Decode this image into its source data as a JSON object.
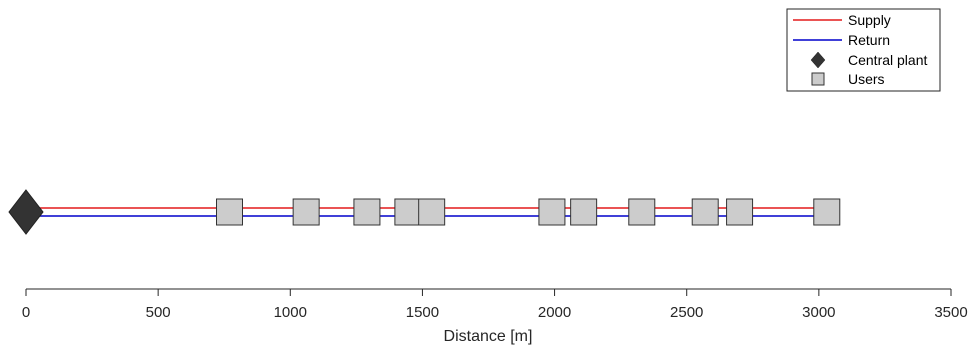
{
  "chart_data": {
    "type": "scatter",
    "title": "",
    "xlabel": "Distance [m]",
    "ylabel": "",
    "xlim": [
      0,
      3500
    ],
    "xticks": [
      0,
      500,
      1000,
      1500,
      2000,
      2500,
      3000,
      3500
    ],
    "xtick_labels": [
      "0",
      "500",
      "1000",
      "1500",
      "2000",
      "2500",
      "3000",
      "3500"
    ],
    "grid": false,
    "legend_position": "top-right",
    "series": [
      {
        "name": "Supply",
        "kind": "line",
        "color": "#e31a1c",
        "x": [
          0,
          3050
        ]
      },
      {
        "name": "Return",
        "kind": "line",
        "color": "#0000cc",
        "x": [
          0,
          3050
        ]
      },
      {
        "name": "Central plant",
        "kind": "marker",
        "marker": "diamond",
        "color": "#333333",
        "x": [
          0
        ]
      },
      {
        "name": "Users",
        "kind": "marker",
        "marker": "square",
        "color": "#cccccc",
        "x": [
          770,
          1060,
          1290,
          1445,
          1535,
          1990,
          2110,
          2330,
          2570,
          2700,
          3030
        ]
      }
    ]
  },
  "legend": {
    "entries": [
      {
        "label": "Supply",
        "icon": "red-line"
      },
      {
        "label": "Return",
        "icon": "blue-line"
      },
      {
        "label": "Central plant",
        "icon": "diamond-icon"
      },
      {
        "label": "Users",
        "icon": "square-icon"
      }
    ]
  }
}
